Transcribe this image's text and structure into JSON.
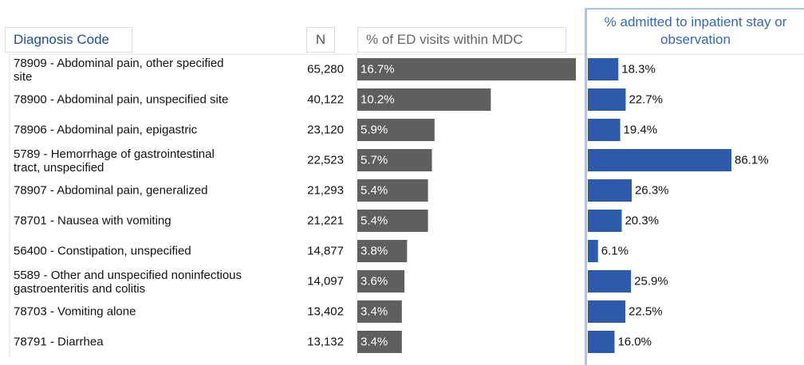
{
  "headers": {
    "diagnosis": "Diagnosis Code",
    "n": "N",
    "pct_ed": "% of ED visits within MDC",
    "pct_admitted": "% admitted to inpatient stay or observation"
  },
  "colors": {
    "ed_bar": "#5f5f5f",
    "admit_bar": "#2e5aac",
    "divider": "#a9c4e6"
  },
  "chart_data": {
    "type": "bar",
    "categories": [
      "78909 - Abdominal pain, other specified site",
      "78900 - Abdominal pain, unspecified site",
      "78906 - Abdominal pain, epigastric",
      "5789 - Hemorrhage of gastrointestinal tract, unspecified",
      "78907 - Abdominal pain, generalized",
      "78701 - Nausea with vomiting",
      "56400 - Constipation, unspecified",
      "5589 - Other and unspecified noninfectious gastroenteritis and colitis",
      "78703 - Vomiting alone",
      "78791 - Diarrhea"
    ],
    "n": [
      "65,280",
      "40,122",
      "23,120",
      "22,523",
      "21,293",
      "21,221",
      "14,877",
      "14,097",
      "13,402",
      "13,132"
    ],
    "series": [
      {
        "name": "% of ED visits within MDC",
        "values": [
          16.7,
          10.2,
          5.9,
          5.7,
          5.4,
          5.4,
          3.8,
          3.6,
          3.4,
          3.4
        ],
        "labels": [
          "16.7%",
          "10.2%",
          "5.9%",
          "5.7%",
          "5.4%",
          "5.4%",
          "3.8%",
          "3.6%",
          "3.4%",
          "3.4%"
        ]
      },
      {
        "name": "% admitted to inpatient stay or observation",
        "values": [
          18.3,
          22.7,
          19.4,
          86.1,
          26.3,
          20.3,
          6.1,
          25.9,
          22.5,
          16.0
        ],
        "labels": [
          "18.3%",
          "22.7%",
          "19.4%",
          "86.1%",
          "26.3%",
          "20.3%",
          "6.1%",
          "25.9%",
          "22.5%",
          "16.0%"
        ]
      }
    ]
  }
}
